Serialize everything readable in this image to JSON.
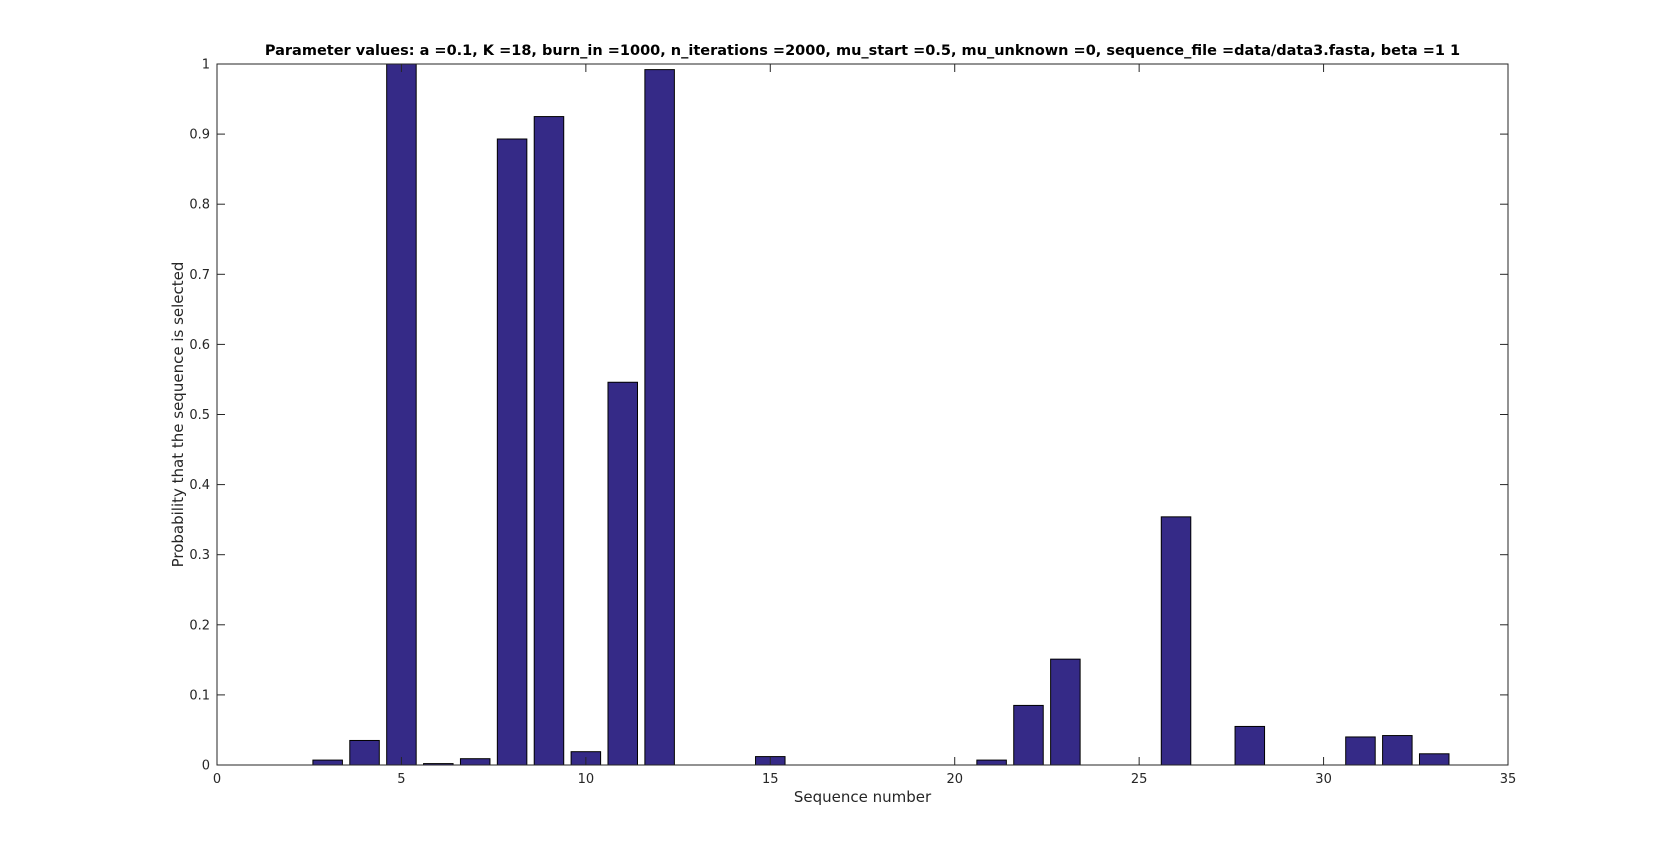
{
  "chart_data": {
    "type": "bar",
    "title": "Parameter values: a =0.1, K =18, burn_in =1000, n_iterations =2000, mu_start =0.5, mu_unknown =0, sequence_file =data/data3.fasta, beta =1  1",
    "xlabel": "Sequence number",
    "ylabel": "Probability that the sequence is selected",
    "xlim": [
      0,
      35
    ],
    "ylim": [
      0,
      1
    ],
    "xticks": [
      0,
      5,
      10,
      15,
      20,
      25,
      30,
      35
    ],
    "yticks": [
      0,
      0.1,
      0.2,
      0.3,
      0.4,
      0.5,
      0.6,
      0.7,
      0.8,
      0.9,
      1
    ],
    "grid": false,
    "bar_color": "#352a87",
    "x": [
      1,
      2,
      3,
      4,
      5,
      6,
      7,
      8,
      9,
      10,
      11,
      12,
      13,
      14,
      15,
      16,
      17,
      18,
      19,
      20,
      21,
      22,
      23,
      24,
      25,
      26,
      27,
      28,
      29,
      30,
      31,
      32,
      33
    ],
    "values": [
      0,
      0,
      0.007,
      0.035,
      1.0,
      0.002,
      0.009,
      0.893,
      0.925,
      0.019,
      0.546,
      0.992,
      0,
      0,
      0.012,
      0,
      0,
      0,
      0,
      0,
      0.007,
      0.085,
      0.151,
      0,
      0,
      0.354,
      0,
      0.055,
      0,
      0,
      0.04,
      0.042,
      0.016
    ]
  }
}
